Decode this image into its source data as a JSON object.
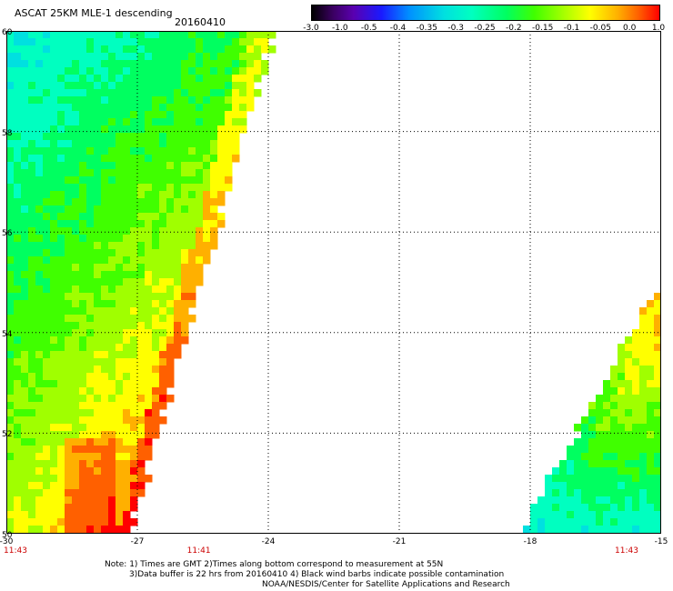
{
  "header": {
    "title": "ASCAT 25KM MLE-1 descending",
    "date": "20160410"
  },
  "colorbar": {
    "labels": [
      "-3.0",
      "-1.0",
      "-0.5",
      "-0.4",
      "-0.35",
      "-0.3",
      "-0.25",
      "-0.2",
      "-0.15",
      "-0.1",
      "-0.05",
      "0.0",
      "1.0"
    ],
    "colors": [
      "#000000",
      "#3a0060",
      "#5a00b0",
      "#1a1aff",
      "#0090ff",
      "#00e0e0",
      "#00ffc0",
      "#00ff60",
      "#40ff00",
      "#a0ff00",
      "#ffff00",
      "#ffb000",
      "#ff6000",
      "#ff0000"
    ]
  },
  "axes": {
    "x_ticks": [
      "-30",
      "-27",
      "-24",
      "-21",
      "-18",
      "-15"
    ],
    "y_ticks": [
      "60",
      "58",
      "56",
      "54",
      "52",
      "50"
    ],
    "x_range": [
      -30,
      -15
    ],
    "y_range": [
      50,
      60
    ],
    "grid": "dotted"
  },
  "times": [
    {
      "lon": -30,
      "label": "11:43"
    },
    {
      "lon": -25.8,
      "label": "11:41"
    },
    {
      "lon": -16,
      "label": "11:43"
    }
  ],
  "footer": {
    "line1": "Note: 1) Times are GMT 2)Times along bottom correspond to measurement at 55N",
    "line2": "3)Data buffer is 22 hrs from 20160410 4) Black wind barbs indicate possible contamination",
    "line3": "NOAA/NESDIS/Center for Satellite Applications and Research"
  }
}
